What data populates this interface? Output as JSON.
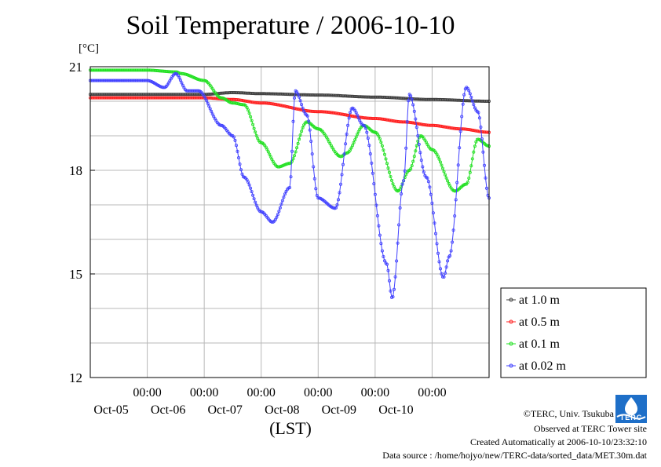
{
  "chart_data": {
    "type": "line",
    "title": "Soil Temperature / 2006-10-10",
    "unit_label": "[°C]",
    "xlabel": "(LST)",
    "ylim": [
      12,
      21
    ],
    "y_ticks": [
      "21",
      "18",
      "15",
      "12"
    ],
    "x_ticks": [
      {
        "time": "00:00",
        "date": "Oct-05"
      },
      {
        "time": "00:00",
        "date": "Oct-06"
      },
      {
        "time": "00:00",
        "date": "Oct-07"
      },
      {
        "time": "00:00",
        "date": "Oct-08"
      },
      {
        "time": "00:00",
        "date": "Oct-09"
      },
      {
        "time": "00:00",
        "date": "Oct-10"
      }
    ],
    "grid": true,
    "legend_position": "right",
    "series": [
      {
        "name": "at 1.0 m",
        "color": "#404040",
        "points": [
          [
            0,
            20.2
          ],
          [
            1,
            20.2
          ],
          [
            1.5,
            20.25
          ],
          [
            2,
            20.22
          ],
          [
            3,
            20.18
          ],
          [
            4,
            20.12
          ],
          [
            5,
            20.05
          ],
          [
            6,
            20.0
          ]
        ]
      },
      {
        "name": "at 0.5 m",
        "color": "#ff2020",
        "points": [
          [
            0,
            20.1
          ],
          [
            1,
            20.1
          ],
          [
            1.5,
            20.05
          ],
          [
            2,
            19.95
          ],
          [
            3,
            19.7
          ],
          [
            4,
            19.5
          ],
          [
            4.5,
            19.4
          ],
          [
            5,
            19.3
          ],
          [
            5.5,
            19.2
          ],
          [
            6,
            19.1
          ]
        ]
      },
      {
        "name": "at 0.1 m",
        "color": "#20e020",
        "points": [
          [
            0,
            20.9
          ],
          [
            0.5,
            20.85
          ],
          [
            0.6,
            20.8
          ],
          [
            1.0,
            20.6
          ],
          [
            1.3,
            20.1
          ],
          [
            1.5,
            19.95
          ],
          [
            1.7,
            19.9
          ],
          [
            2.0,
            18.8
          ],
          [
            2.3,
            18.1
          ],
          [
            2.5,
            18.2
          ],
          [
            2.8,
            19.4
          ],
          [
            3.0,
            19.2
          ],
          [
            3.4,
            18.4
          ],
          [
            3.5,
            18.5
          ],
          [
            3.8,
            19.3
          ],
          [
            4.0,
            19.1
          ],
          [
            4.4,
            17.4
          ],
          [
            4.6,
            18.0
          ],
          [
            4.8,
            19.0
          ],
          [
            5.0,
            18.6
          ],
          [
            5.4,
            17.4
          ],
          [
            5.6,
            17.6
          ],
          [
            5.8,
            18.9
          ],
          [
            6.0,
            18.7
          ]
        ]
      },
      {
        "name": "at 0.02 m",
        "color": "#4040ff",
        "points": [
          [
            0,
            20.6
          ],
          [
            0.3,
            20.4
          ],
          [
            0.5,
            20.8
          ],
          [
            0.7,
            20.3
          ],
          [
            0.9,
            20.3
          ],
          [
            1.3,
            19.3
          ],
          [
            1.5,
            19.0
          ],
          [
            1.7,
            17.8
          ],
          [
            2.0,
            16.8
          ],
          [
            2.2,
            16.5
          ],
          [
            2.5,
            17.5
          ],
          [
            2.6,
            20.3
          ],
          [
            2.8,
            19.6
          ],
          [
            3.0,
            17.2
          ],
          [
            3.3,
            16.9
          ],
          [
            3.6,
            19.8
          ],
          [
            3.8,
            19.3
          ],
          [
            4.2,
            15.3
          ],
          [
            4.3,
            14.3
          ],
          [
            4.5,
            17.7
          ],
          [
            4.6,
            20.2
          ],
          [
            4.9,
            17.8
          ],
          [
            5.2,
            14.9
          ],
          [
            5.3,
            15.5
          ],
          [
            5.6,
            20.4
          ],
          [
            5.8,
            19.7
          ],
          [
            6.0,
            17.2
          ]
        ]
      }
    ]
  },
  "footer": {
    "copyright": "©TERC, Univ. Tsukuba",
    "observed": "Observed at TERC Tower site",
    "created": "Created Automatically at 2006-10-10/23:32:10",
    "source": "Data source : /home/hojyo/new/TERC-data/sorted_data/MET.30m.dat",
    "logo_text": "TERC"
  }
}
